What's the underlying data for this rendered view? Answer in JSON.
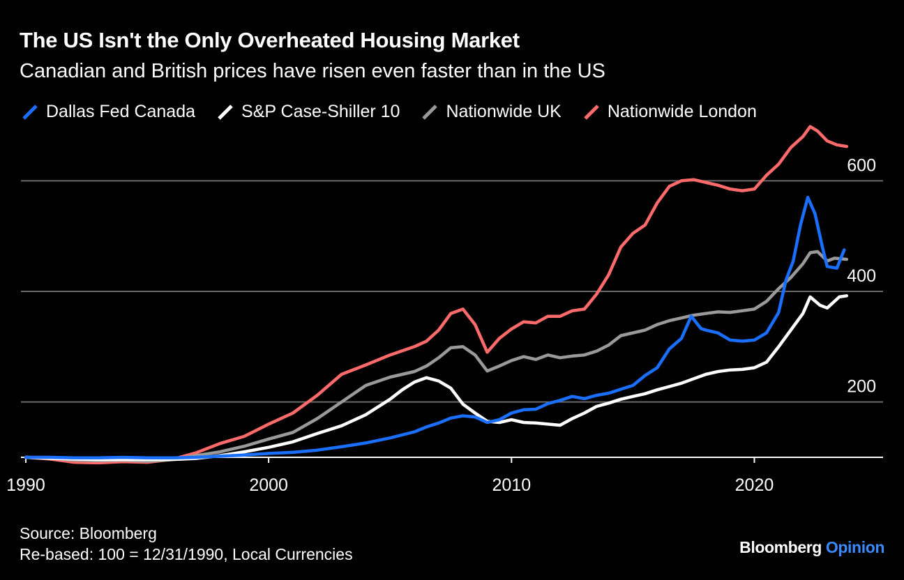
{
  "title": "The US Isn't the Only Overheated Housing Market",
  "subtitle": "Canadian and British prices have risen even faster than in the US",
  "footer": {
    "source": "Source: Bloomberg",
    "note": "Re-based: 100 = 12/31/1990, Local Currencies"
  },
  "brand": {
    "name": "Bloomberg",
    "section": "Opinion"
  },
  "chart_data": {
    "type": "line",
    "ylim": [
      100,
      700
    ],
    "xlim": [
      1989.8,
      2025.3
    ],
    "yticks": [
      200,
      400,
      600
    ],
    "xticks": [
      1990,
      2000,
      2010,
      2020
    ],
    "grid": true,
    "legend_position": "top-left",
    "series": [
      {
        "name": "Dallas Fed Canada",
        "color": "#1a6fff",
        "points": [
          [
            1990,
            100
          ],
          [
            1991,
            100
          ],
          [
            1992,
            99
          ],
          [
            1993,
            99
          ],
          [
            1994,
            100
          ],
          [
            1995,
            99
          ],
          [
            1996,
            99
          ],
          [
            1997,
            100
          ],
          [
            1998,
            102
          ],
          [
            1999,
            104
          ],
          [
            2000,
            107
          ],
          [
            2001,
            109
          ],
          [
            2002,
            113
          ],
          [
            2003,
            119
          ],
          [
            2004,
            126
          ],
          [
            2005,
            135
          ],
          [
            2006,
            146
          ],
          [
            2006.5,
            155
          ],
          [
            2007,
            162
          ],
          [
            2007.5,
            171
          ],
          [
            2008,
            175
          ],
          [
            2008.5,
            173
          ],
          [
            2009,
            163
          ],
          [
            2009.5,
            168
          ],
          [
            2010,
            180
          ],
          [
            2010.5,
            186
          ],
          [
            2011,
            187
          ],
          [
            2011.5,
            197
          ],
          [
            2012,
            203
          ],
          [
            2012.5,
            210
          ],
          [
            2013,
            206
          ],
          [
            2013.5,
            212
          ],
          [
            2014,
            216
          ],
          [
            2014.5,
            223
          ],
          [
            2015,
            230
          ],
          [
            2015.5,
            248
          ],
          [
            2016,
            262
          ],
          [
            2016.5,
            296
          ],
          [
            2017,
            315
          ],
          [
            2017.4,
            355
          ],
          [
            2017.8,
            333
          ],
          [
            2018,
            330
          ],
          [
            2018.5,
            325
          ],
          [
            2019,
            312
          ],
          [
            2019.5,
            310
          ],
          [
            2020,
            312
          ],
          [
            2020.5,
            325
          ],
          [
            2021,
            362
          ],
          [
            2021.3,
            420
          ],
          [
            2021.6,
            455
          ],
          [
            2021.9,
            520
          ],
          [
            2022.2,
            570
          ],
          [
            2022.5,
            540
          ],
          [
            2022.8,
            480
          ],
          [
            2023,
            445
          ],
          [
            2023.4,
            442
          ],
          [
            2023.7,
            475
          ]
        ]
      },
      {
        "name": "S&P Case-Shiller 10",
        "color": "#ffffff",
        "points": [
          [
            1990,
            100
          ],
          [
            1991,
            98
          ],
          [
            1992,
            97
          ],
          [
            1993,
            96
          ],
          [
            1994,
            96
          ],
          [
            1995,
            96
          ],
          [
            1996,
            96
          ],
          [
            1997,
            98
          ],
          [
            1998,
            103
          ],
          [
            1999,
            110
          ],
          [
            2000,
            118
          ],
          [
            2001,
            128
          ],
          [
            2002,
            143
          ],
          [
            2003,
            157
          ],
          [
            2004,
            177
          ],
          [
            2005,
            205
          ],
          [
            2005.5,
            222
          ],
          [
            2006,
            236
          ],
          [
            2006.5,
            244
          ],
          [
            2007,
            238
          ],
          [
            2007.5,
            225
          ],
          [
            2008,
            196
          ],
          [
            2008.5,
            180
          ],
          [
            2009,
            165
          ],
          [
            2009.5,
            163
          ],
          [
            2010,
            168
          ],
          [
            2010.5,
            163
          ],
          [
            2011,
            162
          ],
          [
            2011.5,
            160
          ],
          [
            2012,
            158
          ],
          [
            2012.5,
            170
          ],
          [
            2013,
            180
          ],
          [
            2013.5,
            192
          ],
          [
            2014,
            198
          ],
          [
            2014.5,
            205
          ],
          [
            2015,
            210
          ],
          [
            2015.5,
            215
          ],
          [
            2016,
            222
          ],
          [
            2016.5,
            228
          ],
          [
            2017,
            234
          ],
          [
            2017.5,
            242
          ],
          [
            2018,
            250
          ],
          [
            2018.5,
            255
          ],
          [
            2019,
            258
          ],
          [
            2019.5,
            259
          ],
          [
            2020,
            262
          ],
          [
            2020.5,
            272
          ],
          [
            2021,
            300
          ],
          [
            2021.5,
            330
          ],
          [
            2022,
            360
          ],
          [
            2022.3,
            390
          ],
          [
            2022.7,
            375
          ],
          [
            2023,
            370
          ],
          [
            2023.5,
            390
          ],
          [
            2023.8,
            392
          ]
        ]
      },
      {
        "name": "Nationwide UK",
        "color": "#9a9a9a",
        "points": [
          [
            1990,
            100
          ],
          [
            1991,
            99
          ],
          [
            1992,
            95
          ],
          [
            1993,
            94
          ],
          [
            1994,
            95
          ],
          [
            1995,
            93
          ],
          [
            1996,
            96
          ],
          [
            1997,
            103
          ],
          [
            1998,
            110
          ],
          [
            1999,
            120
          ],
          [
            2000,
            133
          ],
          [
            2001,
            145
          ],
          [
            2002,
            170
          ],
          [
            2003,
            200
          ],
          [
            2004,
            230
          ],
          [
            2005,
            245
          ],
          [
            2006,
            255
          ],
          [
            2006.5,
            265
          ],
          [
            2007,
            280
          ],
          [
            2007.5,
            298
          ],
          [
            2008,
            300
          ],
          [
            2008.5,
            285
          ],
          [
            2009,
            256
          ],
          [
            2009.5,
            265
          ],
          [
            2010,
            275
          ],
          [
            2010.5,
            282
          ],
          [
            2011,
            277
          ],
          [
            2011.5,
            285
          ],
          [
            2012,
            280
          ],
          [
            2012.5,
            283
          ],
          [
            2013,
            285
          ],
          [
            2013.5,
            292
          ],
          [
            2014,
            303
          ],
          [
            2014.5,
            320
          ],
          [
            2015,
            325
          ],
          [
            2015.5,
            330
          ],
          [
            2016,
            340
          ],
          [
            2016.5,
            347
          ],
          [
            2017,
            352
          ],
          [
            2017.5,
            357
          ],
          [
            2018,
            360
          ],
          [
            2018.5,
            363
          ],
          [
            2019,
            362
          ],
          [
            2019.5,
            365
          ],
          [
            2020,
            368
          ],
          [
            2020.5,
            382
          ],
          [
            2021,
            405
          ],
          [
            2021.5,
            425
          ],
          [
            2022,
            450
          ],
          [
            2022.3,
            470
          ],
          [
            2022.6,
            472
          ],
          [
            2023,
            455
          ],
          [
            2023.3,
            460
          ],
          [
            2023.8,
            458
          ]
        ]
      },
      {
        "name": "Nationwide London",
        "color": "#ff6b6b",
        "points": [
          [
            1990,
            100
          ],
          [
            1991,
            97
          ],
          [
            1992,
            91
          ],
          [
            1993,
            90
          ],
          [
            1994,
            92
          ],
          [
            1995,
            91
          ],
          [
            1996,
            96
          ],
          [
            1997,
            108
          ],
          [
            1998,
            125
          ],
          [
            1999,
            138
          ],
          [
            2000,
            160
          ],
          [
            2001,
            180
          ],
          [
            2002,
            212
          ],
          [
            2003,
            250
          ],
          [
            2004,
            267
          ],
          [
            2005,
            285
          ],
          [
            2006,
            300
          ],
          [
            2006.5,
            310
          ],
          [
            2007,
            330
          ],
          [
            2007.5,
            360
          ],
          [
            2008,
            368
          ],
          [
            2008.5,
            340
          ],
          [
            2009,
            290
          ],
          [
            2009.5,
            315
          ],
          [
            2010,
            332
          ],
          [
            2010.5,
            345
          ],
          [
            2011,
            343
          ],
          [
            2011.5,
            355
          ],
          [
            2012,
            355
          ],
          [
            2012.5,
            365
          ],
          [
            2013,
            368
          ],
          [
            2013.5,
            395
          ],
          [
            2014,
            430
          ],
          [
            2014.5,
            480
          ],
          [
            2015,
            505
          ],
          [
            2015.5,
            520
          ],
          [
            2016,
            560
          ],
          [
            2016.5,
            590
          ],
          [
            2017,
            600
          ],
          [
            2017.5,
            602
          ],
          [
            2018,
            597
          ],
          [
            2018.5,
            592
          ],
          [
            2019,
            585
          ],
          [
            2019.5,
            582
          ],
          [
            2020,
            585
          ],
          [
            2020.5,
            610
          ],
          [
            2021,
            630
          ],
          [
            2021.5,
            660
          ],
          [
            2022,
            680
          ],
          [
            2022.3,
            698
          ],
          [
            2022.6,
            690
          ],
          [
            2023,
            672
          ],
          [
            2023.4,
            665
          ],
          [
            2023.8,
            662
          ]
        ]
      }
    ]
  }
}
